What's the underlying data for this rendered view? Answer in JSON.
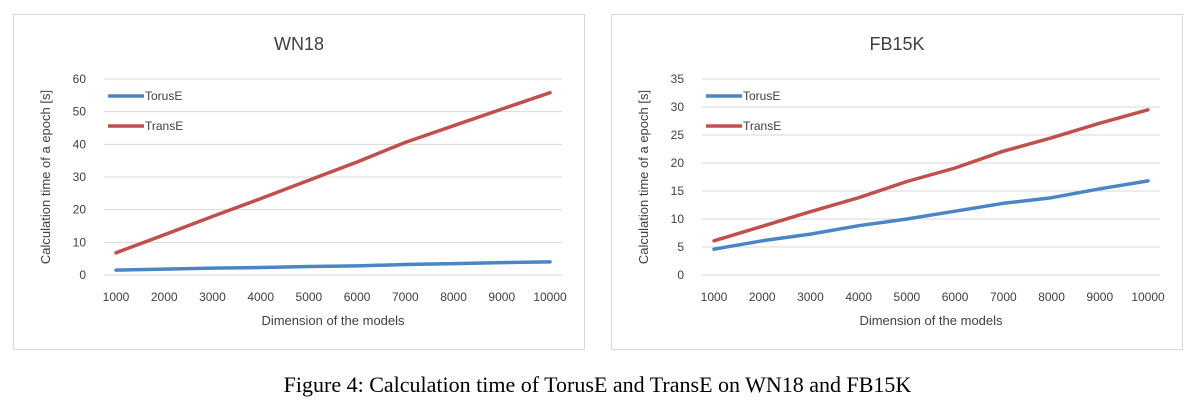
{
  "caption": "Figure 4: Calculation time of TorusE and TransE on WN18 and FB15K",
  "colors": {
    "toruse": "#4a86c5",
    "transe": "#c0504d",
    "grid": "#d9d9d9",
    "text": "#404040"
  },
  "chart_data": [
    {
      "type": "line",
      "title": "WN18",
      "xlabel": "Dimension of the models",
      "ylabel": "Calculation time of a epoch [s]",
      "x": [
        1000,
        2000,
        3000,
        4000,
        5000,
        6000,
        7000,
        8000,
        9000,
        10000
      ],
      "ylim": [
        0,
        60
      ],
      "yticks": [
        0,
        10,
        20,
        30,
        40,
        50,
        60
      ],
      "legend": "top-left",
      "grid": true,
      "series": [
        {
          "name": "TorusE",
          "color": "#4a86c5",
          "values": [
            1.5,
            1.8,
            2.1,
            2.3,
            2.6,
            2.8,
            3.2,
            3.5,
            3.8,
            4.0
          ]
        },
        {
          "name": "TransE",
          "color": "#c0504d",
          "values": [
            6.8,
            12.3,
            17.9,
            23.4,
            29.0,
            34.6,
            40.6,
            45.7,
            50.8,
            55.8
          ]
        }
      ]
    },
    {
      "type": "line",
      "title": "FB15K",
      "xlabel": "Dimension of the models",
      "ylabel": "Calculation time of a epoch [s]",
      "x": [
        1000,
        2000,
        3000,
        4000,
        5000,
        6000,
        7000,
        8000,
        9000,
        10000
      ],
      "ylim": [
        0,
        35
      ],
      "yticks": [
        0,
        5,
        10,
        15,
        20,
        25,
        30,
        35
      ],
      "legend": "top-left",
      "grid": true,
      "series": [
        {
          "name": "TorusE",
          "color": "#4a86c5",
          "values": [
            4.6,
            6.1,
            7.3,
            8.8,
            10.0,
            11.4,
            12.8,
            13.8,
            15.4,
            16.8
          ]
        },
        {
          "name": "TransE",
          "color": "#c0504d",
          "values": [
            6.1,
            8.7,
            11.3,
            13.8,
            16.7,
            19.1,
            22.1,
            24.5,
            27.1,
            29.5
          ]
        }
      ]
    }
  ]
}
